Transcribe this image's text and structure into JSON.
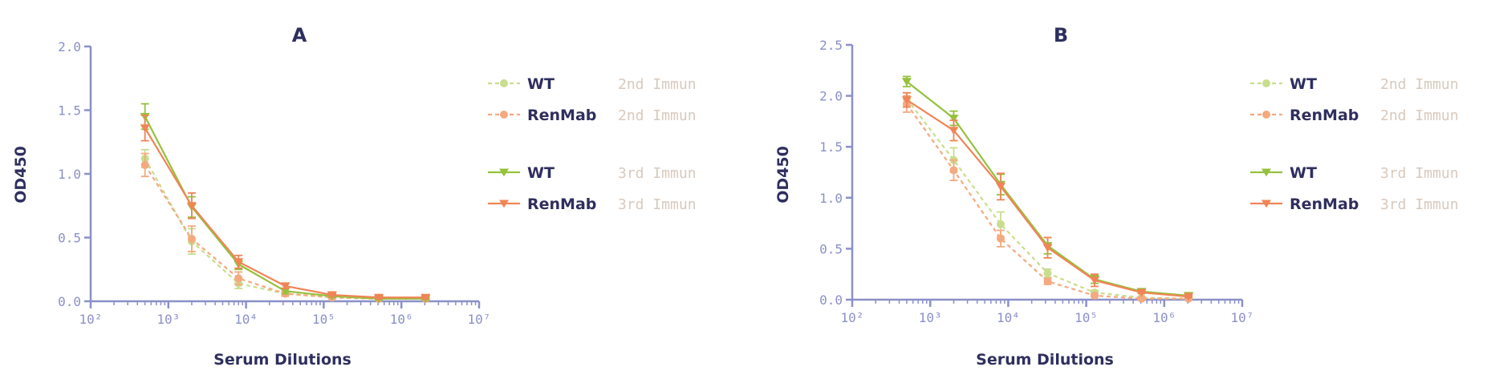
{
  "chart_data": [
    {
      "type": "line",
      "title": "A",
      "xlabel": "Serum Dilutions",
      "ylabel": "OD450",
      "x_scale": "log",
      "xlim": [
        100,
        10000000
      ],
      "ylim": [
        0,
        2.0
      ],
      "x_ticks": [
        {
          "value": 100,
          "label": "10²"
        },
        {
          "value": 1000,
          "label": "10³"
        },
        {
          "value": 10000,
          "label": "10⁴"
        },
        {
          "value": 100000,
          "label": "10⁵"
        },
        {
          "value": 1000000,
          "label": "10⁶"
        },
        {
          "value": 10000000,
          "label": "10⁷"
        }
      ],
      "y_ticks": [
        {
          "value": 0,
          "label": "0.0"
        },
        {
          "value": 0.5,
          "label": "0.5"
        },
        {
          "value": 1.0,
          "label": "1.0"
        },
        {
          "value": 1.5,
          "label": "1.5"
        },
        {
          "value": 2.0,
          "label": "2.0"
        }
      ],
      "x": [
        500,
        2000,
        8000,
        32000,
        128000,
        512000,
        2048000
      ],
      "legend_position": "right",
      "series": [
        {
          "name": "WT",
          "group": "2nd Immun",
          "color": "#c9dd8e",
          "style": "dashed",
          "marker": "circle",
          "values": [
            1.12,
            0.47,
            0.14,
            0.06,
            0.03,
            0.02,
            0.02
          ],
          "errors": [
            0.07,
            0.1,
            0.04,
            0.01,
            0.01,
            0.01,
            0.01
          ]
        },
        {
          "name": "RenMab",
          "group": "2nd Immun",
          "color": "#f5a97f",
          "style": "dashed",
          "marker": "circle",
          "values": [
            1.07,
            0.49,
            0.18,
            0.06,
            0.03,
            0.02,
            0.02
          ],
          "errors": [
            0.09,
            0.1,
            0.05,
            0.02,
            0.01,
            0.01,
            0.01
          ]
        },
        {
          "name": "WT",
          "group": "3rd Immun",
          "color": "#95c13d",
          "style": "solid",
          "marker": "triangle-down",
          "values": [
            1.45,
            0.74,
            0.29,
            0.08,
            0.04,
            0.02,
            0.02
          ],
          "errors": [
            0.1,
            0.08,
            0.04,
            0.02,
            0.01,
            0.01,
            0.01
          ]
        },
        {
          "name": "RenMab",
          "group": "3rd Immun",
          "color": "#f08456",
          "style": "solid",
          "marker": "triangle-down",
          "values": [
            1.36,
            0.75,
            0.31,
            0.12,
            0.05,
            0.03,
            0.03
          ],
          "errors": [
            0.1,
            0.1,
            0.05,
            0.02,
            0.01,
            0.01,
            0.01
          ]
        }
      ]
    },
    {
      "type": "line",
      "title": "B",
      "xlabel": "Serum Dilutions",
      "ylabel": "OD450",
      "x_scale": "log",
      "xlim": [
        100,
        10000000
      ],
      "ylim": [
        0,
        2.5
      ],
      "x_ticks": [
        {
          "value": 100,
          "label": "10²"
        },
        {
          "value": 1000,
          "label": "10³"
        },
        {
          "value": 10000,
          "label": "10⁴"
        },
        {
          "value": 100000,
          "label": "10⁵"
        },
        {
          "value": 1000000,
          "label": "10⁶"
        },
        {
          "value": 10000000,
          "label": "10⁷"
        }
      ],
      "y_ticks": [
        {
          "value": 0,
          "label": "0.0"
        },
        {
          "value": 0.5,
          "label": "0.5"
        },
        {
          "value": 1.0,
          "label": "1.0"
        },
        {
          "value": 1.5,
          "label": "1.5"
        },
        {
          "value": 2.0,
          "label": "2.0"
        },
        {
          "value": 2.5,
          "label": "2.5"
        }
      ],
      "x": [
        500,
        2000,
        8000,
        32000,
        128000,
        512000,
        2048000
      ],
      "legend_position": "right",
      "series": [
        {
          "name": "WT",
          "group": "2nd Immun",
          "color": "#c9dd8e",
          "style": "dashed",
          "marker": "circle",
          "values": [
            1.97,
            1.37,
            0.74,
            0.26,
            0.07,
            0.02,
            0.01
          ],
          "errors": [
            0.06,
            0.12,
            0.12,
            0.04,
            0.02,
            0.01,
            0.01
          ]
        },
        {
          "name": "RenMab",
          "group": "2nd Immun",
          "color": "#f5a97f",
          "style": "dashed",
          "marker": "circle",
          "values": [
            1.92,
            1.27,
            0.6,
            0.18,
            0.04,
            0.01,
            0.01
          ],
          "errors": [
            0.08,
            0.1,
            0.08,
            0.03,
            0.01,
            0.01,
            0.01
          ]
        },
        {
          "name": "WT",
          "group": "3rd Immun",
          "color": "#95c13d",
          "style": "solid",
          "marker": "triangle-down",
          "values": [
            2.14,
            1.78,
            1.13,
            0.53,
            0.2,
            0.08,
            0.04
          ],
          "errors": [
            0.05,
            0.07,
            0.1,
            0.08,
            0.04,
            0.01,
            0.01
          ]
        },
        {
          "name": "RenMab",
          "group": "3rd Immun",
          "color": "#f08456",
          "style": "solid",
          "marker": "triangle-down",
          "values": [
            1.96,
            1.66,
            1.11,
            0.51,
            0.19,
            0.07,
            0.03
          ],
          "errors": [
            0.07,
            0.1,
            0.13,
            0.1,
            0.06,
            0.01,
            0.01
          ]
        }
      ]
    }
  ],
  "colors": {
    "axis": "#8b90c8",
    "text": "#2e2f5e",
    "legend_group": "#d8c9bd"
  }
}
